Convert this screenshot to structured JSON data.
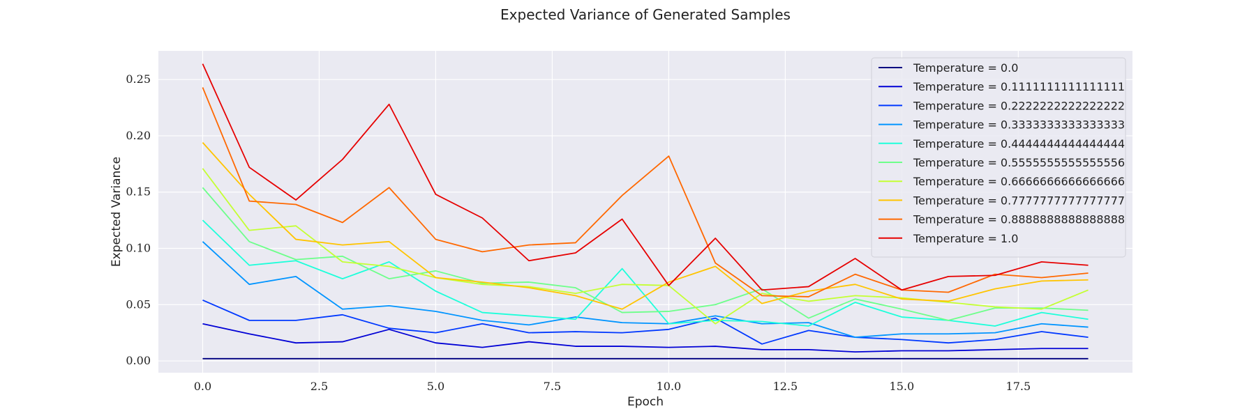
{
  "chart_data": {
    "type": "line",
    "title": "Expected Variance of Generated Samples",
    "xlabel": "Epoch",
    "ylabel": "Expected Variance",
    "xlim": [
      -0.95,
      19.95
    ],
    "ylim": [
      -0.0105,
      0.2755
    ],
    "xticks": [
      0.0,
      2.5,
      5.0,
      7.5,
      10.0,
      12.5,
      15.0,
      17.5
    ],
    "xtick_labels": [
      "0.0",
      "2.5",
      "5.0",
      "7.5",
      "10.0",
      "12.5",
      "15.0",
      "17.5"
    ],
    "yticks": [
      0.0,
      0.05,
      0.1,
      0.15,
      0.2,
      0.25
    ],
    "ytick_labels": [
      "0.00",
      "0.05",
      "0.10",
      "0.15",
      "0.20",
      "0.25"
    ],
    "grid": true,
    "legend_position": "top-right",
    "x": [
      0,
      1,
      2,
      3,
      4,
      5,
      6,
      7,
      8,
      9,
      10,
      11,
      12,
      13,
      14,
      15,
      16,
      17,
      18,
      19
    ],
    "series": [
      {
        "name": "Temperature = 0.0",
        "color": "#000080",
        "values": [
          0.002,
          0.002,
          0.002,
          0.002,
          0.002,
          0.002,
          0.002,
          0.002,
          0.002,
          0.002,
          0.002,
          0.002,
          0.002,
          0.002,
          0.002,
          0.002,
          0.002,
          0.002,
          0.002,
          0.002
        ]
      },
      {
        "name": "Temperature = 0.1111111111111111",
        "color": "#0000d5",
        "values": [
          0.033,
          0.024,
          0.016,
          0.017,
          0.028,
          0.016,
          0.012,
          0.017,
          0.013,
          0.013,
          0.012,
          0.013,
          0.01,
          0.01,
          0.008,
          0.009,
          0.009,
          0.01,
          0.011,
          0.011
        ]
      },
      {
        "name": "Temperature = 0.2222222222222222",
        "color": "#0038ff",
        "values": [
          0.054,
          0.036,
          0.036,
          0.041,
          0.029,
          0.025,
          0.033,
          0.025,
          0.026,
          0.025,
          0.028,
          0.038,
          0.015,
          0.027,
          0.021,
          0.019,
          0.016,
          0.019,
          0.026,
          0.021
        ]
      },
      {
        "name": "Temperature = 0.3333333333333333",
        "color": "#0094ff",
        "values": [
          0.106,
          0.068,
          0.075,
          0.046,
          0.049,
          0.044,
          0.036,
          0.032,
          0.039,
          0.034,
          0.033,
          0.04,
          0.033,
          0.034,
          0.021,
          0.024,
          0.024,
          0.025,
          0.033,
          0.03
        ]
      },
      {
        "name": "Temperature = 0.4444444444444444",
        "color": "#1cffda",
        "values": [
          0.125,
          0.085,
          0.089,
          0.073,
          0.088,
          0.062,
          0.043,
          0.04,
          0.037,
          0.082,
          0.033,
          0.036,
          0.035,
          0.031,
          0.052,
          0.039,
          0.036,
          0.031,
          0.043,
          0.037
        ]
      },
      {
        "name": "Temperature = 0.5555555555555556",
        "color": "#6dff8a",
        "values": [
          0.154,
          0.106,
          0.09,
          0.093,
          0.073,
          0.08,
          0.069,
          0.07,
          0.065,
          0.043,
          0.044,
          0.05,
          0.064,
          0.038,
          0.055,
          0.046,
          0.036,
          0.047,
          0.047,
          0.045
        ]
      },
      {
        "name": "Temperature = 0.6666666666666666",
        "color": "#c4ff33",
        "values": [
          0.171,
          0.116,
          0.12,
          0.088,
          0.084,
          0.074,
          0.068,
          0.066,
          0.06,
          0.068,
          0.067,
          0.033,
          0.06,
          0.053,
          0.058,
          0.056,
          0.052,
          0.048,
          0.046,
          0.063
        ]
      },
      {
        "name": "Temperature = 0.7777777777777777",
        "color": "#ffc400",
        "values": [
          0.194,
          0.148,
          0.108,
          0.103,
          0.106,
          0.074,
          0.07,
          0.065,
          0.058,
          0.046,
          0.07,
          0.084,
          0.051,
          0.062,
          0.068,
          0.055,
          0.053,
          0.064,
          0.071,
          0.072
        ]
      },
      {
        "name": "Temperature = 0.8888888888888888",
        "color": "#ff6800",
        "values": [
          0.243,
          0.142,
          0.139,
          0.123,
          0.154,
          0.108,
          0.097,
          0.103,
          0.105,
          0.147,
          0.182,
          0.087,
          0.058,
          0.057,
          0.077,
          0.063,
          0.061,
          0.077,
          0.074,
          0.078
        ]
      },
      {
        "name": "Temperature = 1.0",
        "color": "#e60000",
        "values": [
          0.264,
          0.172,
          0.143,
          0.179,
          0.228,
          0.148,
          0.127,
          0.089,
          0.096,
          0.126,
          0.067,
          0.109,
          0.063,
          0.066,
          0.091,
          0.063,
          0.075,
          0.076,
          0.088,
          0.085
        ]
      }
    ]
  }
}
